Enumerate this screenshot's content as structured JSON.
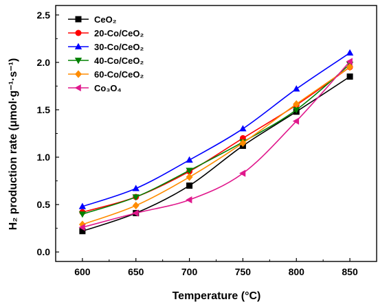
{
  "chart_data": {
    "type": "line",
    "xlabel": "Temperature (°C)",
    "ylabel": "H₂ production rate (μmol·g⁻¹·s⁻¹)",
    "xlim": [
      575,
      875
    ],
    "ylim": [
      -0.1,
      2.6
    ],
    "x_ticks": [
      "600",
      "650",
      "700",
      "750",
      "800",
      "850"
    ],
    "y_ticks": [
      "0.0",
      "0.5",
      "1.0",
      "1.5",
      "2.0",
      "2.5"
    ],
    "grid": false,
    "legend_position": "top-left",
    "x": [
      600,
      650,
      700,
      750,
      800,
      850
    ],
    "series": [
      {
        "name": "CeO₂",
        "values": [
          0.22,
          0.41,
          0.7,
          1.12,
          1.48,
          1.85
        ],
        "color": "#000000",
        "marker": "square"
      },
      {
        "name": "20-Co/CeO₂",
        "values": [
          0.42,
          0.58,
          0.85,
          1.2,
          1.55,
          1.95
        ],
        "color": "#ff0000",
        "marker": "circle"
      },
      {
        "name": "30-Co/CeO₂",
        "values": [
          0.48,
          0.67,
          0.97,
          1.3,
          1.72,
          2.1
        ],
        "color": "#0000ff",
        "marker": "triangle-up"
      },
      {
        "name": "40-Co/CeO₂",
        "values": [
          0.4,
          0.58,
          0.86,
          1.16,
          1.5,
          1.98
        ],
        "color": "#008000",
        "marker": "triangle-down"
      },
      {
        "name": "60-Co/CeO₂",
        "values": [
          0.29,
          0.49,
          0.79,
          1.15,
          1.56,
          1.95
        ],
        "color": "#ff8c00",
        "marker": "diamond"
      },
      {
        "name": "Co₃O₄",
        "values": [
          0.26,
          0.41,
          0.55,
          0.83,
          1.38,
          2.01
        ],
        "color": "#e0188c",
        "marker": "triangle-left"
      }
    ]
  }
}
